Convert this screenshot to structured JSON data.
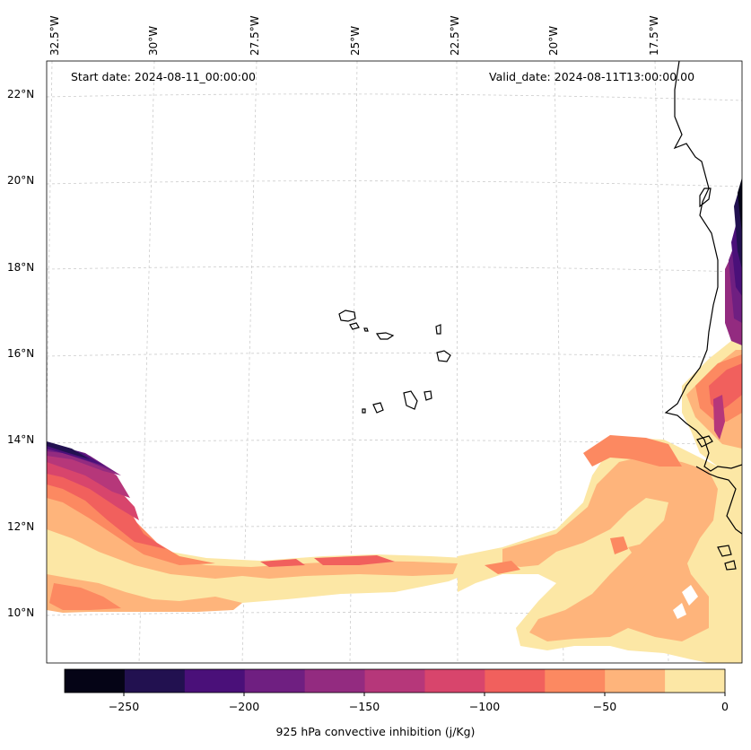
{
  "map": {
    "start_label": "Start date: 2024-08-11_00:00:00",
    "valid_label": "Valid_date: 2024-08-11T13:00:00.00",
    "lon_labels": [
      "32.5°W",
      "30°W",
      "27.5°W",
      "25°W",
      "22.5°W",
      "20°W",
      "17.5°W"
    ],
    "lat_labels": [
      "22°N",
      "20°N",
      "18°N",
      "16°N",
      "14°N",
      "12°N",
      "10°N"
    ],
    "variable": "925 hPa convective inhibition (j/Kg)"
  },
  "colorbar": {
    "ticks": [
      "−250",
      "−200",
      "−150",
      "−100",
      "−50",
      "0"
    ],
    "levels": [
      -275,
      -250,
      -225,
      -200,
      -175,
      -150,
      -125,
      -100,
      -75,
      -50,
      -25,
      0
    ],
    "colors": [
      "#050416",
      "#221150",
      "#4a1079",
      "#6f1f81",
      "#932b80",
      "#b6377a",
      "#d8456c",
      "#f1605d",
      "#fc8961",
      "#feb47b",
      "#fce7a5"
    ]
  },
  "colors": {
    "coast": "#000000",
    "grid": "#cccccc",
    "frame": "#000000"
  }
}
